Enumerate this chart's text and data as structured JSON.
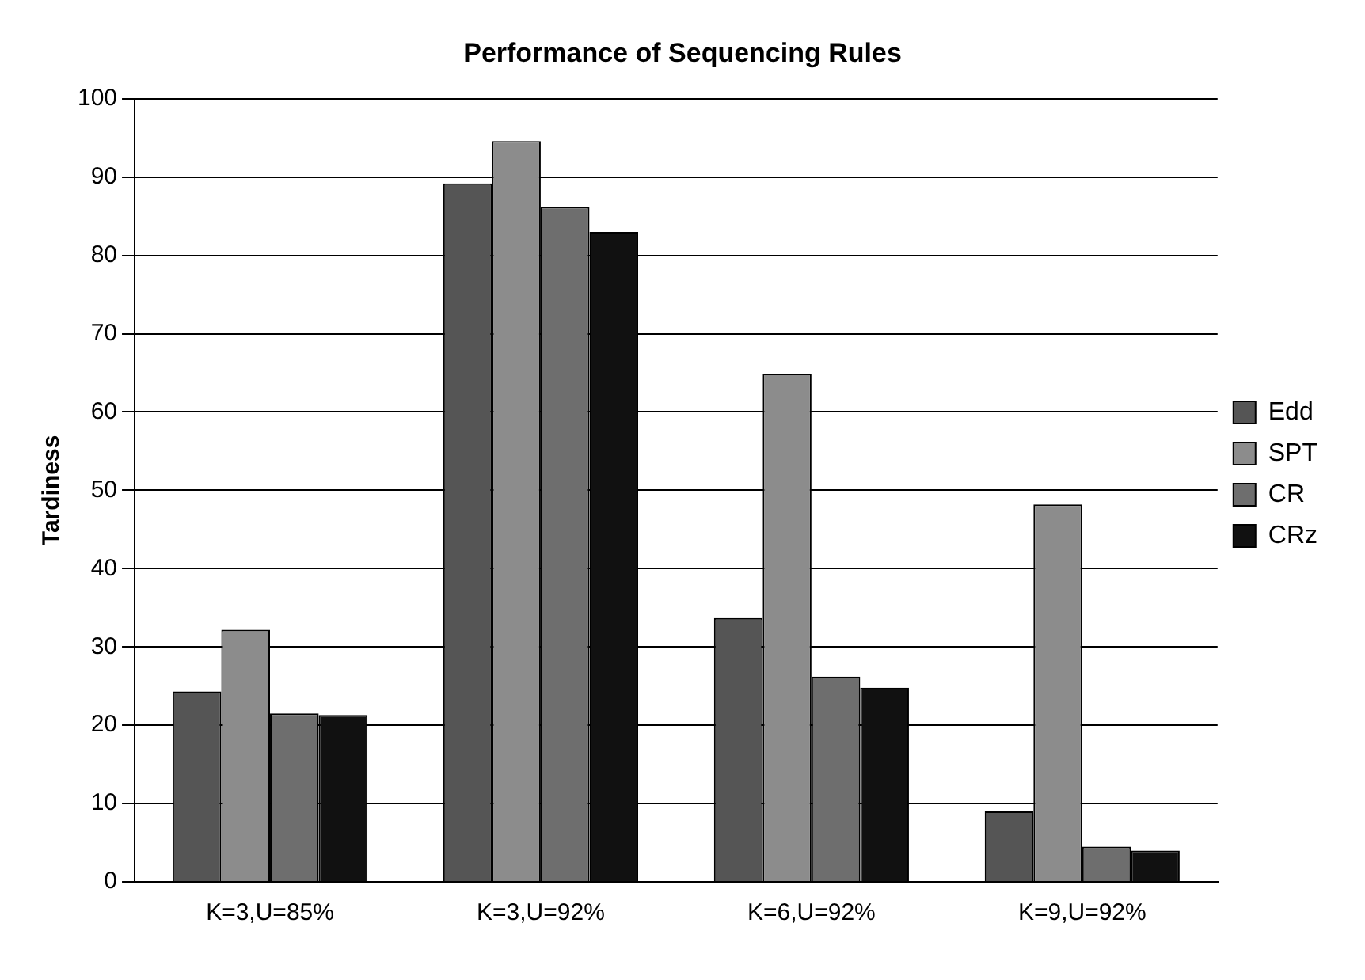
{
  "chart_data": {
    "type": "bar",
    "title": "Performance of Sequencing Rules",
    "ylabel": "Tardiness",
    "categories": [
      "K=3,U=85%",
      "K=3,U=92%",
      "K=6,U=92%",
      "K=9,U=92%"
    ],
    "series": [
      {
        "name": "Edd",
        "color": "#555555",
        "values": [
          24.3,
          89.2,
          33.7,
          9.0
        ]
      },
      {
        "name": "SPT",
        "color": "#8c8c8c",
        "values": [
          32.2,
          94.6,
          64.9,
          48.2
        ]
      },
      {
        "name": "CR",
        "color": "#6e6e6e",
        "values": [
          21.5,
          86.2,
          26.2,
          4.5
        ]
      },
      {
        "name": "CRz",
        "color": "#111111",
        "values": [
          21.3,
          83.0,
          24.8,
          4.0
        ]
      }
    ],
    "ylim": [
      0,
      100
    ],
    "yticks": [
      0,
      10,
      20,
      30,
      40,
      50,
      60,
      70,
      80,
      90,
      100
    ],
    "grid": "y",
    "legend": "right"
  }
}
